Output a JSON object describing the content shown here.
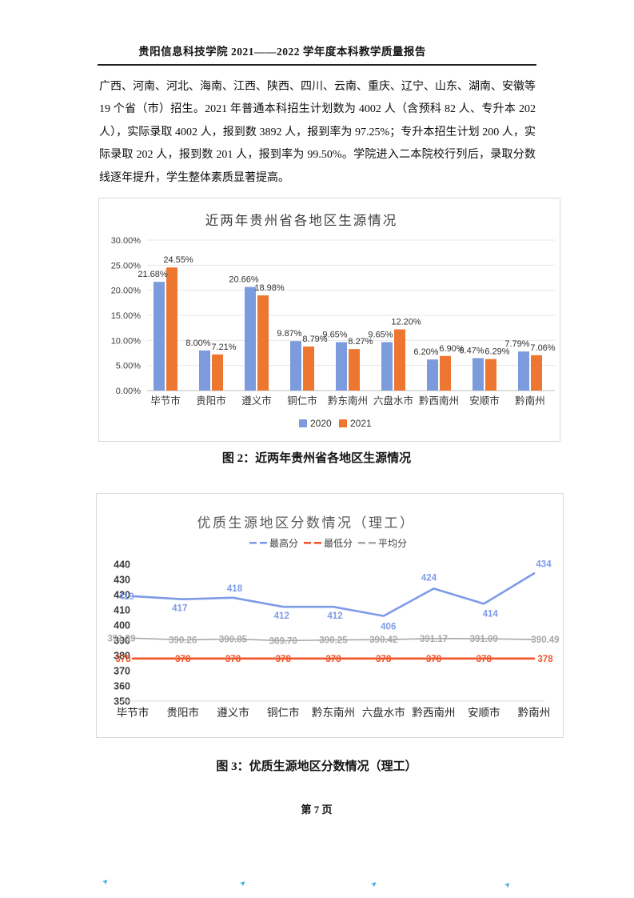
{
  "page": {
    "header_title": "贵阳信息科技学院 2021——2022 学年度本科教学质量报告",
    "paragraph": "广西、河南、河北、海南、江西、陕西、四川、云南、重庆、辽宁、山东、湖南、安徽等 19 个省（市）招生。2021 年普通本科招生计划数为 4002 人（含预科 82 人、专升本 202 人），实际录取 4002 人，报到数 3892 人，报到率为 97.25%；专升本招生计划 200 人，实际录取 202 人，报到数 201 人，报到率为 99.50%。学院进入二本院校行列后，录取分数线逐年提升，学生整体素质显著提高。",
    "figure2_caption": "图 2：近两年贵州省各地区生源情况",
    "figure3_caption": "图 3：优质生源地区分数情况（理工）",
    "footer": "第 7 页"
  },
  "chart_data": [
    {
      "type": "bar",
      "title": "近两年贵州省各地区生源情况",
      "categories": [
        "毕节市",
        "贵阳市",
        "遵义市",
        "铜仁市",
        "黔东南州",
        "六盘水市",
        "黔西南州",
        "安顺市",
        "黔南州"
      ],
      "series": [
        {
          "name": "2020",
          "color": "#7C9BDC",
          "values": [
            21.68,
            8.0,
            20.66,
            9.87,
            9.65,
            9.65,
            6.2,
            6.47,
            7.79
          ]
        },
        {
          "name": "2021",
          "color": "#ED7631",
          "values": [
            24.55,
            7.21,
            18.98,
            8.79,
            8.27,
            12.2,
            6.9,
            6.29,
            7.06
          ]
        }
      ],
      "ylabel": "",
      "xlabel": "",
      "ylim": [
        0,
        30
      ],
      "ytick_step": 5,
      "ytick_format": "percent-2dp",
      "value_labels": "percent-2dp",
      "grid": true,
      "legend_position": "bottom"
    },
    {
      "type": "line",
      "title": "优质生源地区分数情况（理工）",
      "categories": [
        "毕节市",
        "贵阳市",
        "遵义市",
        "铜仁市",
        "黔东南州",
        "六盘水市",
        "黔西南州",
        "安顺市",
        "黔南州"
      ],
      "series": [
        {
          "name": "最高分",
          "color": "#7D9BE8",
          "decimals": 0,
          "values": [
            419,
            417,
            418,
            412,
            412,
            406,
            424,
            414,
            434
          ]
        },
        {
          "name": "最低分",
          "color": "#F0562B",
          "decimals": 0,
          "values": [
            378,
            378,
            378,
            378,
            378,
            378,
            378,
            378,
            378
          ]
        },
        {
          "name": "平均分",
          "color": "#ABA7A7",
          "decimals": 2,
          "values": [
            391.39,
            390.26,
            390.85,
            389.7,
            390.25,
            390.42,
            391.17,
            391.09,
            390.49
          ]
        }
      ],
      "ylabel": "",
      "xlabel": "",
      "ylim": [
        350,
        440
      ],
      "ytick_step": 10,
      "grid": false,
      "legend_position": "top"
    }
  ],
  "artifacts": {
    "scan_mark_color": "#2EA9E0",
    "scan_mark_glyph": "➤",
    "scan_mark_count": 4
  }
}
